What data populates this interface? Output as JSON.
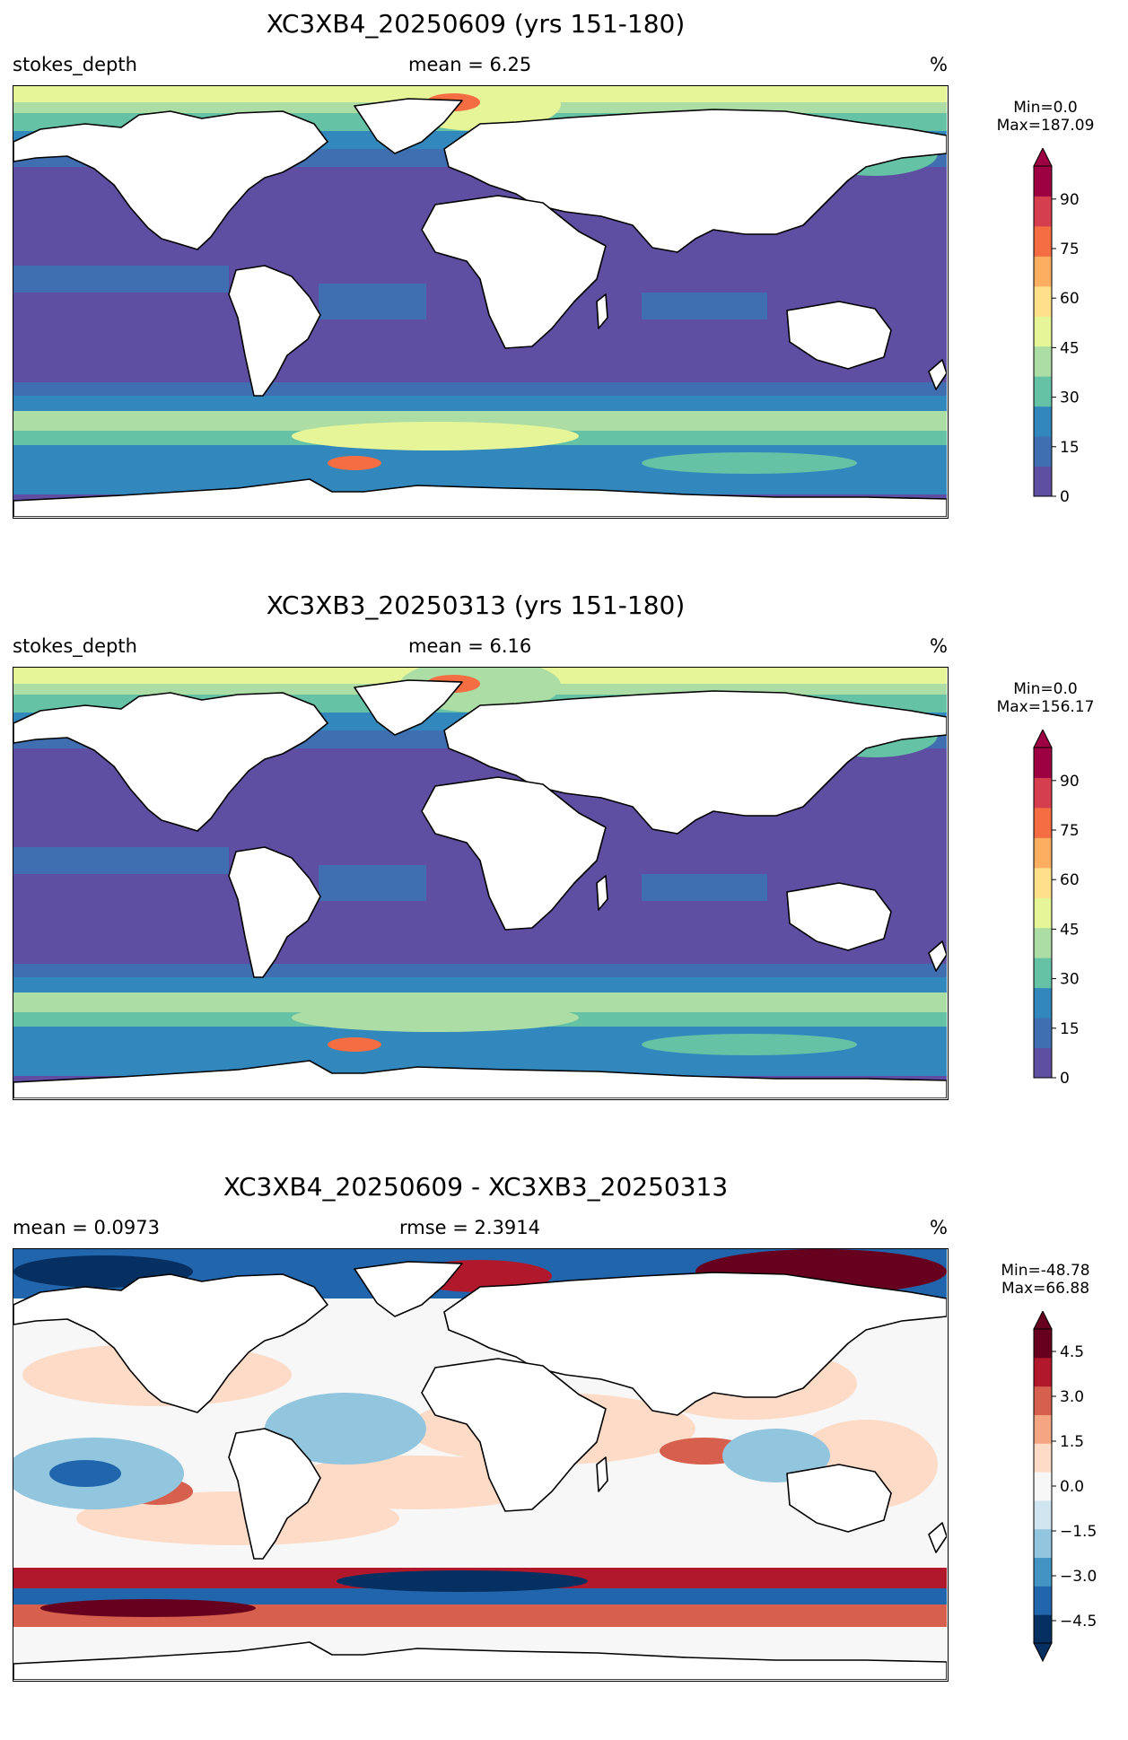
{
  "panels": [
    {
      "title": "XC3XB4_20250609 (yrs 151-180)",
      "left_label": "stokes_depth",
      "center_label": "mean = 6.25",
      "right_label": "%",
      "colorbar": {
        "min_text": "Min=0.0",
        "max_text": "Max=187.09",
        "colormap": "Spectral_r",
        "ticks": [
          "90",
          "75",
          "60",
          "45",
          "30",
          "15",
          "0"
        ],
        "range": [
          0,
          100
        ],
        "extend": "max"
      }
    },
    {
      "title": "XC3XB3_20250313 (yrs 151-180)",
      "left_label": "stokes_depth",
      "center_label": "mean = 6.16",
      "right_label": "%",
      "colorbar": {
        "min_text": "Min=0.0",
        "max_text": "Max=156.17",
        "colormap": "Spectral_r",
        "ticks": [
          "90",
          "75",
          "60",
          "45",
          "30",
          "15",
          "0"
        ],
        "range": [
          0,
          100
        ],
        "extend": "max"
      }
    },
    {
      "title": "XC3XB4_20250609 - XC3XB3_20250313",
      "left_label": "mean = 0.0973",
      "center_label": "rmse = 2.3914",
      "right_label": "%",
      "colorbar": {
        "min_text": "Min=-48.78",
        "max_text": "Max=66.88",
        "colormap": "RdBu_r",
        "ticks": [
          "4.5",
          "3.0",
          "1.5",
          "0.0",
          "−1.5",
          "−3.0",
          "−4.5"
        ],
        "range": [
          -5.25,
          5.25
        ],
        "extend": "both"
      }
    }
  ],
  "colors": {
    "spectral": [
      "#5e4fa2",
      "#3f6fb0",
      "#3288bd",
      "#66c2a5",
      "#abdda4",
      "#e6f598",
      "#fee08b",
      "#fdae61",
      "#f46d43",
      "#d53e4f",
      "#9e0142"
    ],
    "rdbu": [
      "#053061",
      "#2166ac",
      "#4393c3",
      "#92c5de",
      "#d1e5f0",
      "#f7f7f7",
      "#fddbc7",
      "#f4a582",
      "#d6604d",
      "#b2182b",
      "#67001f"
    ],
    "land": "#ffffff",
    "coast": "#000000"
  }
}
